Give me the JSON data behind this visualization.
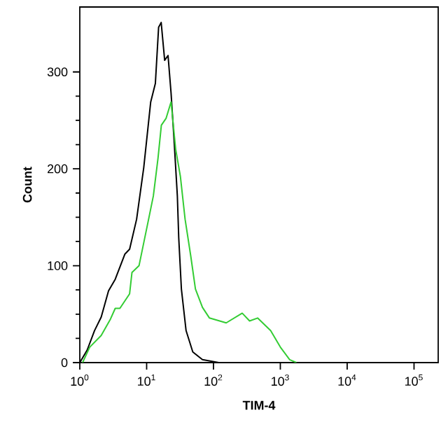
{
  "chart_data": {
    "type": "line",
    "xlabel": "TIM-4",
    "ylabel": "Count",
    "log": "x",
    "xlim": [
      1,
      230000
    ],
    "ylim": [
      0,
      367
    ],
    "xticks": [
      {
        "value": 1,
        "label": "10$^{0}$"
      },
      {
        "value": 10,
        "label": "10$^{1}$"
      },
      {
        "value": 100,
        "label": "10$^{2}$"
      },
      {
        "value": 1000,
        "label": "10$^{3}$"
      },
      {
        "value": 10000,
        "label": "10$^{4}$"
      },
      {
        "value": 100000,
        "label": "10$^{5}$"
      }
    ],
    "yticks": [
      0,
      100,
      200,
      300
    ],
    "marker": "none",
    "line_style": "solid",
    "series": [
      {
        "color": "#000000",
        "x": [
          1.0,
          1.29,
          1.66,
          2.09,
          2.69,
          3.39,
          4.73,
          5.56,
          7.08,
          9.04,
          11.5,
          13.5,
          15.1,
          16.5,
          18.6,
          20.9,
          23.2,
          25.7,
          28.8,
          30.2,
          33.1,
          38.9,
          49,
          68.4,
          120
        ],
        "values": [
          0,
          13,
          33,
          47,
          74,
          86,
          112,
          117,
          148,
          201,
          269,
          288,
          346,
          351,
          312,
          317,
          278,
          230,
          172,
          129,
          76,
          33,
          11,
          3,
          0
        ]
      },
      {
        "color": "#33cc33",
        "x": [
          1.1,
          1.41,
          2.09,
          2.88,
          3.39,
          3.98,
          5.56,
          6.03,
          7.69,
          10.7,
          12.6,
          14.8,
          16.6,
          19.5,
          23.2,
          27.2,
          32,
          37.6,
          45.7,
          53.7,
          68.4,
          87.1,
          155,
          269,
          347,
          457,
          716,
          1000,
          1380,
          1740
        ],
        "values": [
          0,
          16,
          28,
          45,
          56,
          56,
          71,
          93,
          100,
          148,
          172,
          211,
          245,
          252,
          269,
          220,
          192,
          148,
          110,
          76,
          57,
          46,
          41,
          51,
          43,
          46,
          33,
          16,
          3,
          0
        ]
      }
    ]
  }
}
